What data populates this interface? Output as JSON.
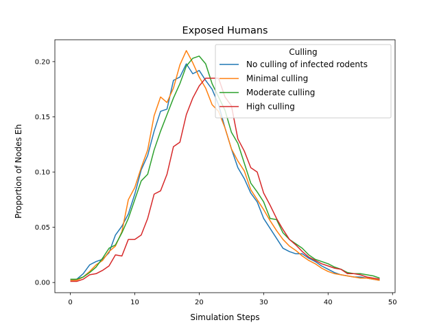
{
  "chart_data": {
    "type": "line",
    "title": "Exposed Humans",
    "xlabel": "Simulation Steps",
    "ylabel": "Proportion of Nodes Eh",
    "xlim": [
      -2.4,
      50.4
    ],
    "ylim": [
      -0.0092,
      0.2198
    ],
    "xticks": [
      0,
      10,
      20,
      30,
      40,
      50
    ],
    "yticks": [
      0.0,
      0.05,
      0.1,
      0.15,
      0.2
    ],
    "xtick_labels": [
      "0",
      "10",
      "20",
      "30",
      "40",
      "50"
    ],
    "ytick_labels": [
      "0.00",
      "0.05",
      "0.10",
      "0.15",
      "0.20"
    ],
    "grid": false,
    "legend": {
      "title": "Culling",
      "placement": "top-right"
    },
    "x": [
      0,
      1,
      2,
      3,
      4,
      5,
      6,
      7,
      8,
      9,
      10,
      11,
      12,
      13,
      14,
      15,
      16,
      17,
      18,
      19,
      20,
      21,
      22,
      23,
      24,
      25,
      26,
      27,
      28,
      29,
      30,
      31,
      32,
      33,
      34,
      35,
      36,
      37,
      38,
      39,
      40,
      41,
      42,
      43,
      44,
      45,
      46,
      47,
      48
    ],
    "series": [
      {
        "name": "No culling of infected rodents",
        "color": "#1f77b4",
        "values": [
          0.002,
          0.003,
          0.008,
          0.016,
          0.019,
          0.021,
          0.027,
          0.043,
          0.051,
          0.062,
          0.08,
          0.102,
          0.115,
          0.137,
          0.155,
          0.157,
          0.183,
          0.186,
          0.198,
          0.189,
          0.192,
          0.183,
          0.175,
          0.161,
          0.14,
          0.121,
          0.104,
          0.094,
          0.081,
          0.073,
          0.058,
          0.049,
          0.04,
          0.031,
          0.028,
          0.026,
          0.026,
          0.022,
          0.019,
          0.015,
          0.012,
          0.009,
          0.007,
          0.006,
          0.005,
          0.005,
          0.004,
          0.003,
          0.002
        ]
      },
      {
        "name": "Minimal culling",
        "color": "#ff7f0e",
        "values": [
          0.002,
          0.002,
          0.005,
          0.01,
          0.016,
          0.02,
          0.028,
          0.033,
          0.046,
          0.075,
          0.086,
          0.104,
          0.12,
          0.151,
          0.168,
          0.163,
          0.176,
          0.197,
          0.21,
          0.199,
          0.186,
          0.176,
          0.161,
          0.155,
          0.14,
          0.121,
          0.11,
          0.101,
          0.084,
          0.075,
          0.066,
          0.056,
          0.047,
          0.039,
          0.033,
          0.029,
          0.024,
          0.02,
          0.017,
          0.013,
          0.01,
          0.008,
          0.007,
          0.006,
          0.005,
          0.004,
          0.004,
          0.003,
          0.002
        ]
      },
      {
        "name": "Moderate culling",
        "color": "#2ca02c",
        "values": [
          0.003,
          0.003,
          0.005,
          0.009,
          0.014,
          0.022,
          0.031,
          0.034,
          0.045,
          0.058,
          0.075,
          0.092,
          0.098,
          0.12,
          0.137,
          0.152,
          0.167,
          0.18,
          0.196,
          0.203,
          0.205,
          0.198,
          0.18,
          0.168,
          0.156,
          0.136,
          0.126,
          0.108,
          0.09,
          0.082,
          0.073,
          0.058,
          0.057,
          0.045,
          0.039,
          0.035,
          0.031,
          0.025,
          0.021,
          0.019,
          0.017,
          0.014,
          0.012,
          0.009,
          0.008,
          0.008,
          0.007,
          0.006,
          0.004
        ]
      },
      {
        "name": "High culling",
        "color": "#d62728",
        "values": [
          0.001,
          0.001,
          0.003,
          0.007,
          0.008,
          0.011,
          0.015,
          0.025,
          0.024,
          0.039,
          0.039,
          0.043,
          0.058,
          0.08,
          0.083,
          0.098,
          0.123,
          0.127,
          0.152,
          0.167,
          0.178,
          0.185,
          0.185,
          0.185,
          0.168,
          0.16,
          0.13,
          0.119,
          0.104,
          0.1,
          0.081,
          0.07,
          0.058,
          0.048,
          0.039,
          0.034,
          0.028,
          0.023,
          0.02,
          0.017,
          0.015,
          0.013,
          0.012,
          0.008,
          0.008,
          0.007,
          0.005,
          0.004,
          0.003
        ]
      }
    ]
  }
}
